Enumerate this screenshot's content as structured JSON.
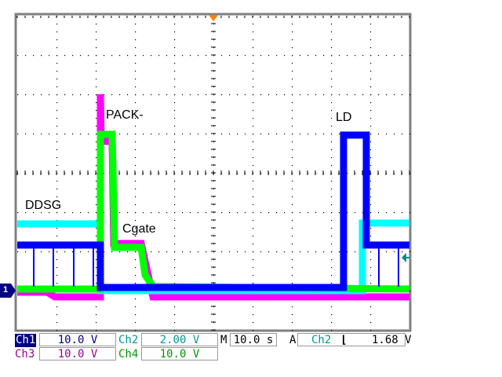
{
  "chart_data": {
    "type": "line",
    "title": "",
    "xlabel": "",
    "ylabel": "",
    "x_unit": "s",
    "y_unit": "div",
    "xlim": [
      0,
      100
    ],
    "ylim": [
      -4,
      4
    ],
    "grid": true,
    "x_divisions": 10,
    "y_divisions": 8,
    "series": [
      {
        "channel": "Ch3",
        "color": "#ff00ff",
        "points": [
          [
            0,
            -3.04
          ],
          [
            7.6,
            -3.04
          ],
          [
            9.6,
            -3.16
          ],
          [
            21.2,
            -3.16
          ],
          [
            21.2,
            2.0
          ],
          [
            21.4,
            0.8
          ],
          [
            24.2,
            0.8
          ],
          [
            24.6,
            -1.8
          ],
          [
            31.6,
            -1.8
          ],
          [
            34.6,
            -3.16
          ],
          [
            100,
            -3.16
          ]
        ]
      },
      {
        "channel": "Ch2",
        "color": "#00ffff",
        "points": [
          [
            0,
            -1.3
          ],
          [
            21.2,
            -1.3
          ],
          [
            21.2,
            -3.0
          ],
          [
            88,
            -3.0
          ],
          [
            88,
            -1.28
          ],
          [
            100,
            -1.28
          ]
        ]
      },
      {
        "channel": "Ch4",
        "color": "#00ff00",
        "points": [
          [
            0,
            -2.96
          ],
          [
            21.2,
            -2.96
          ],
          [
            21.2,
            0.98
          ],
          [
            24.2,
            0.98
          ],
          [
            24.8,
            -1.9
          ],
          [
            31.6,
            -1.9
          ],
          [
            32.6,
            -2.6
          ],
          [
            34.6,
            -2.9
          ],
          [
            100,
            -2.96
          ]
        ]
      },
      {
        "channel": "Ch1",
        "color": "#0000ff",
        "points": [
          [
            0,
            -1.84
          ],
          [
            21.2,
            -1.84
          ],
          [
            21.2,
            -2.92
          ],
          [
            83.2,
            -2.92
          ],
          [
            83.2,
            0.96
          ],
          [
            89,
            0.96
          ],
          [
            89,
            -1.84
          ],
          [
            100,
            -1.84
          ]
        ],
        "spikes": [
          [
            4.2,
            -1.84,
            -2.9
          ],
          [
            9.2,
            -1.84,
            -2.9
          ],
          [
            14.4,
            -1.84,
            -2.9
          ],
          [
            19.4,
            -1.84,
            -2.9
          ],
          [
            92.2,
            -1.84,
            -2.9
          ],
          [
            97.2,
            -1.84,
            -2.9
          ]
        ]
      }
    ],
    "annotations": [
      "PACK-",
      "DDSG",
      "Cgate",
      "LD"
    ],
    "ground_marker": "1",
    "ground_level_div": -3,
    "trigger_color": "#ff8000",
    "trigger_level_color": "#008b8b"
  },
  "readout": {
    "ch1": {
      "label": "Ch1",
      "scale": "10.0 V"
    },
    "ch2": {
      "label": "Ch2",
      "scale": "2.00 V"
    },
    "ch3": {
      "label": "Ch3",
      "scale": "10.0 V"
    },
    "ch4": {
      "label": "Ch4",
      "scale": "10.0 V"
    },
    "timebase": {
      "label": "M",
      "value": "10.0 s"
    },
    "trigger": {
      "label": "A",
      "source": "Ch2",
      "slope_icon": "falling-edge",
      "slope_glyph": "⌊",
      "level": "1.68 V"
    }
  }
}
